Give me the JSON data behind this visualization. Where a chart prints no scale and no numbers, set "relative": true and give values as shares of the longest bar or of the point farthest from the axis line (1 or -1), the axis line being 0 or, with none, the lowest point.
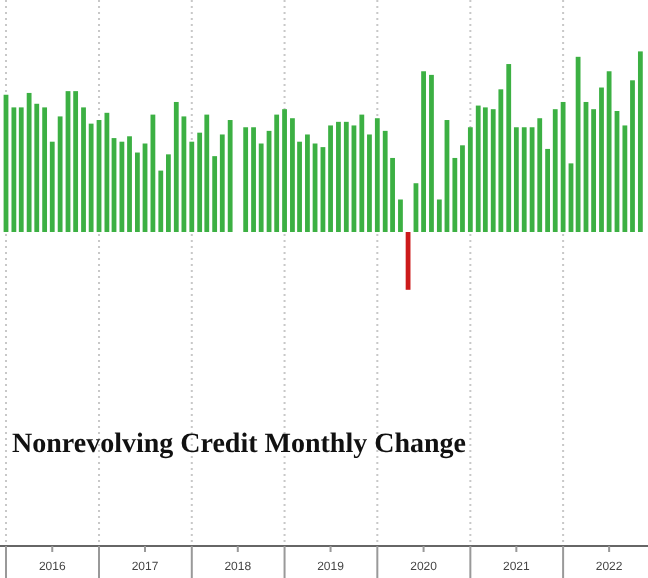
{
  "chart_data": {
    "type": "bar",
    "title": "Nonrevolving Credit Monthly Change",
    "relative": true,
    "grid": "x",
    "x": [
      "2016-01",
      "2016-02",
      "2016-03",
      "2016-04",
      "2016-05",
      "2016-06",
      "2016-07",
      "2016-08",
      "2016-09",
      "2016-10",
      "2016-11",
      "2016-12",
      "2017-01",
      "2017-02",
      "2017-03",
      "2017-04",
      "2017-05",
      "2017-06",
      "2017-07",
      "2017-08",
      "2017-09",
      "2017-10",
      "2017-11",
      "2017-12",
      "2018-01",
      "2018-02",
      "2018-03",
      "2018-04",
      "2018-05",
      "2018-06",
      "2018-07",
      "2018-08",
      "2018-09",
      "2018-10",
      "2018-11",
      "2018-12",
      "2019-01",
      "2019-02",
      "2019-03",
      "2019-04",
      "2019-05",
      "2019-06",
      "2019-07",
      "2019-08",
      "2019-09",
      "2019-10",
      "2019-11",
      "2019-12",
      "2020-01",
      "2020-02",
      "2020-03",
      "2020-04",
      "2020-05",
      "2020-06",
      "2020-07",
      "2020-08",
      "2020-09",
      "2020-10",
      "2020-11",
      "2020-12",
      "2021-01",
      "2021-02",
      "2021-03",
      "2021-04",
      "2021-05",
      "2021-06",
      "2021-07",
      "2021-08",
      "2021-09",
      "2021-10",
      "2021-11",
      "2021-12",
      "2022-01",
      "2022-02",
      "2022-03",
      "2022-04",
      "2022-05",
      "2022-06",
      "2022-07",
      "2022-08",
      "2022-09",
      "2022-10",
      "2022-11"
    ],
    "values": [
      0.76,
      0.69,
      0.69,
      0.77,
      0.71,
      0.69,
      0.5,
      0.64,
      0.78,
      0.78,
      0.69,
      0.6,
      0.62,
      0.66,
      0.52,
      0.5,
      0.53,
      0.44,
      0.49,
      0.65,
      0.34,
      0.43,
      0.72,
      0.64,
      0.5,
      0.55,
      0.65,
      0.42,
      0.54,
      0.62,
      0,
      0.58,
      0.58,
      0.49,
      0.56,
      0.65,
      0.68,
      0.63,
      0.5,
      0.54,
      0.49,
      0.47,
      0.59,
      0.61,
      0.61,
      0.59,
      0.65,
      0.54,
      0.63,
      0.56,
      0.41,
      0.18,
      -0.32,
      0.27,
      0.89,
      0.87,
      0.18,
      0.62,
      0.41,
      0.48,
      0.58,
      0.7,
      0.69,
      0.68,
      0.79,
      0.93,
      0.58,
      0.58,
      0.58,
      0.63,
      0.46,
      0.68,
      0.72,
      0.38,
      0.97,
      0.72,
      0.68,
      0.8,
      0.89,
      0.67,
      0.59,
      0.84,
      1
    ],
    "colors": [
      "#3cb043",
      "#3cb043",
      "#3cb043",
      "#3cb043",
      "#3cb043",
      "#3cb043",
      "#3cb043",
      "#3cb043",
      "#3cb043",
      "#3cb043",
      "#3cb043",
      "#3cb043",
      "#3cb043",
      "#3cb043",
      "#3cb043",
      "#3cb043",
      "#3cb043",
      "#3cb043",
      "#3cb043",
      "#3cb043",
      "#3cb043",
      "#3cb043",
      "#3cb043",
      "#3cb043",
      "#3cb043",
      "#3cb043",
      "#3cb043",
      "#3cb043",
      "#3cb043",
      "#3cb043",
      "#3cb043",
      "#3cb043",
      "#3cb043",
      "#3cb043",
      "#3cb043",
      "#3cb043",
      "#3cb043",
      "#3cb043",
      "#3cb043",
      "#3cb043",
      "#3cb043",
      "#3cb043",
      "#3cb043",
      "#3cb043",
      "#3cb043",
      "#3cb043",
      "#3cb043",
      "#3cb043",
      "#3cb043",
      "#3cb043",
      "#3cb043",
      "#3cb043",
      "#cc1a1a",
      "#3cb043",
      "#3cb043",
      "#3cb043",
      "#3cb043",
      "#3cb043",
      "#3cb043",
      "#3cb043",
      "#3cb043",
      "#3cb043",
      "#3cb043",
      "#3cb043",
      "#3cb043",
      "#3cb043",
      "#3cb043",
      "#3cb043",
      "#3cb043",
      "#3cb043",
      "#3cb043",
      "#3cb043",
      "#3cb043",
      "#3cb043",
      "#3cb043",
      "#3cb043",
      "#3cb043",
      "#3cb043",
      "#3cb043",
      "#3cb043",
      "#3cb043",
      "#3cb043",
      "#3cb043"
    ],
    "xlim": [
      "2016-01",
      "2022-12"
    ],
    "xticks": [
      {
        "value": "2016-01",
        "label": null
      },
      {
        "value": "2016-07",
        "label": "2016"
      },
      {
        "value": "2017-01",
        "label": null
      },
      {
        "value": "2017-07",
        "label": "2017"
      },
      {
        "value": "2018-01",
        "label": null
      },
      {
        "value": "2018-07",
        "label": "2018"
      },
      {
        "value": "2019-01",
        "label": null
      },
      {
        "value": "2019-07",
        "label": "2019"
      },
      {
        "value": "2020-01",
        "label": null
      },
      {
        "value": "2020-07",
        "label": "2020"
      },
      {
        "value": "2021-01",
        "label": null
      },
      {
        "value": "2021-07",
        "label": "2021"
      },
      {
        "value": "2022-01",
        "label": null
      },
      {
        "value": "2022-07",
        "label": "2022"
      }
    ]
  }
}
